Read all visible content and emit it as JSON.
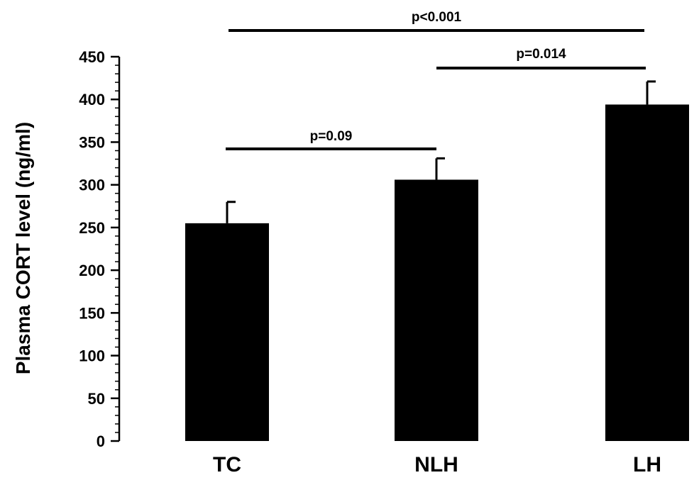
{
  "chart_data": {
    "type": "bar",
    "title": "",
    "xlabel": "",
    "ylabel": "Plasma CORT level (ng/ml)",
    "categories": [
      "TC",
      "NLH",
      "LH"
    ],
    "values": [
      255,
      306,
      394
    ],
    "error_upper": [
      280,
      331,
      421
    ],
    "ylim": [
      0,
      450
    ],
    "yticks": [
      0,
      50,
      100,
      150,
      200,
      250,
      300,
      350,
      400,
      450
    ],
    "minor_tick_step": 10,
    "bar_color": "#000000",
    "grid": false,
    "legend": "none",
    "significance": [
      {
        "from": "TC",
        "to": "NLH",
        "label": "p=0.09"
      },
      {
        "from": "NLH",
        "to": "LH",
        "label": "p=0.014"
      },
      {
        "from": "TC",
        "to": "LH",
        "label": "p<0.001"
      }
    ]
  }
}
